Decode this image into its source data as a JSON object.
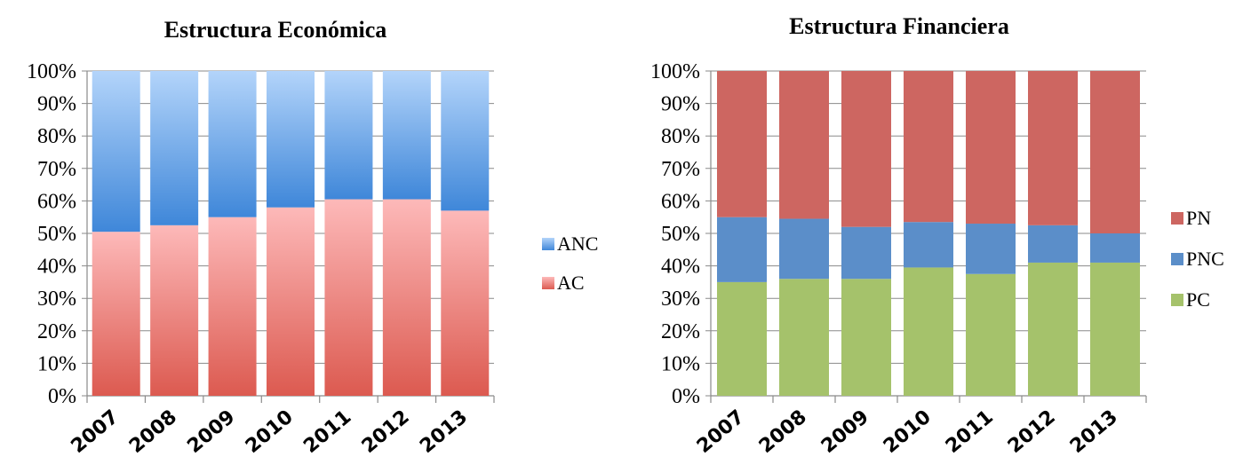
{
  "chart_data": [
    {
      "id": "economica",
      "type": "bar",
      "stacked": true,
      "title": "Estructura Económica",
      "categories": [
        "2007",
        "2008",
        "2009",
        "2010",
        "2011",
        "2012",
        "2013"
      ],
      "series": [
        {
          "name": "AC",
          "values": [
            50.5,
            52.5,
            55,
            58,
            60.5,
            60.5,
            57
          ],
          "color": "#e06666",
          "color_light": "#fab4b4"
        },
        {
          "name": "ANC",
          "values": [
            49.5,
            47.5,
            45,
            42,
            39.5,
            39.5,
            43
          ],
          "color": "#4a8fdc",
          "color_light": "#a8cdf7"
        }
      ],
      "ylim": [
        0,
        100
      ],
      "yticks": [
        "0%",
        "10%",
        "20%",
        "30%",
        "40%",
        "50%",
        "60%",
        "70%",
        "80%",
        "90%",
        "100%"
      ],
      "legend": [
        "ANC",
        "AC"
      ],
      "legend_position": "right",
      "grid": true
    },
    {
      "id": "financiera",
      "type": "bar",
      "stacked": true,
      "title": "Estructura Financiera",
      "categories": [
        "2007",
        "2008",
        "2009",
        "2010",
        "2011",
        "2012",
        "2013"
      ],
      "series": [
        {
          "name": "PC",
          "values": [
            35,
            36,
            36,
            39.5,
            37.5,
            41,
            41
          ],
          "color": "#a5c26b"
        },
        {
          "name": "PNC",
          "values": [
            20,
            18.5,
            16,
            14,
            15.5,
            11.5,
            9
          ],
          "color": "#5b8ec9"
        },
        {
          "name": "PN",
          "values": [
            45,
            45.5,
            48,
            46.5,
            47,
            47.5,
            50
          ],
          "color": "#cd6661"
        }
      ],
      "ylim": [
        0,
        100
      ],
      "yticks": [
        "0%",
        "10%",
        "20%",
        "30%",
        "40%",
        "50%",
        "60%",
        "70%",
        "80%",
        "90%",
        "100%"
      ],
      "legend": [
        "PN",
        "PNC",
        "PC"
      ],
      "legend_position": "right",
      "grid": true
    }
  ]
}
